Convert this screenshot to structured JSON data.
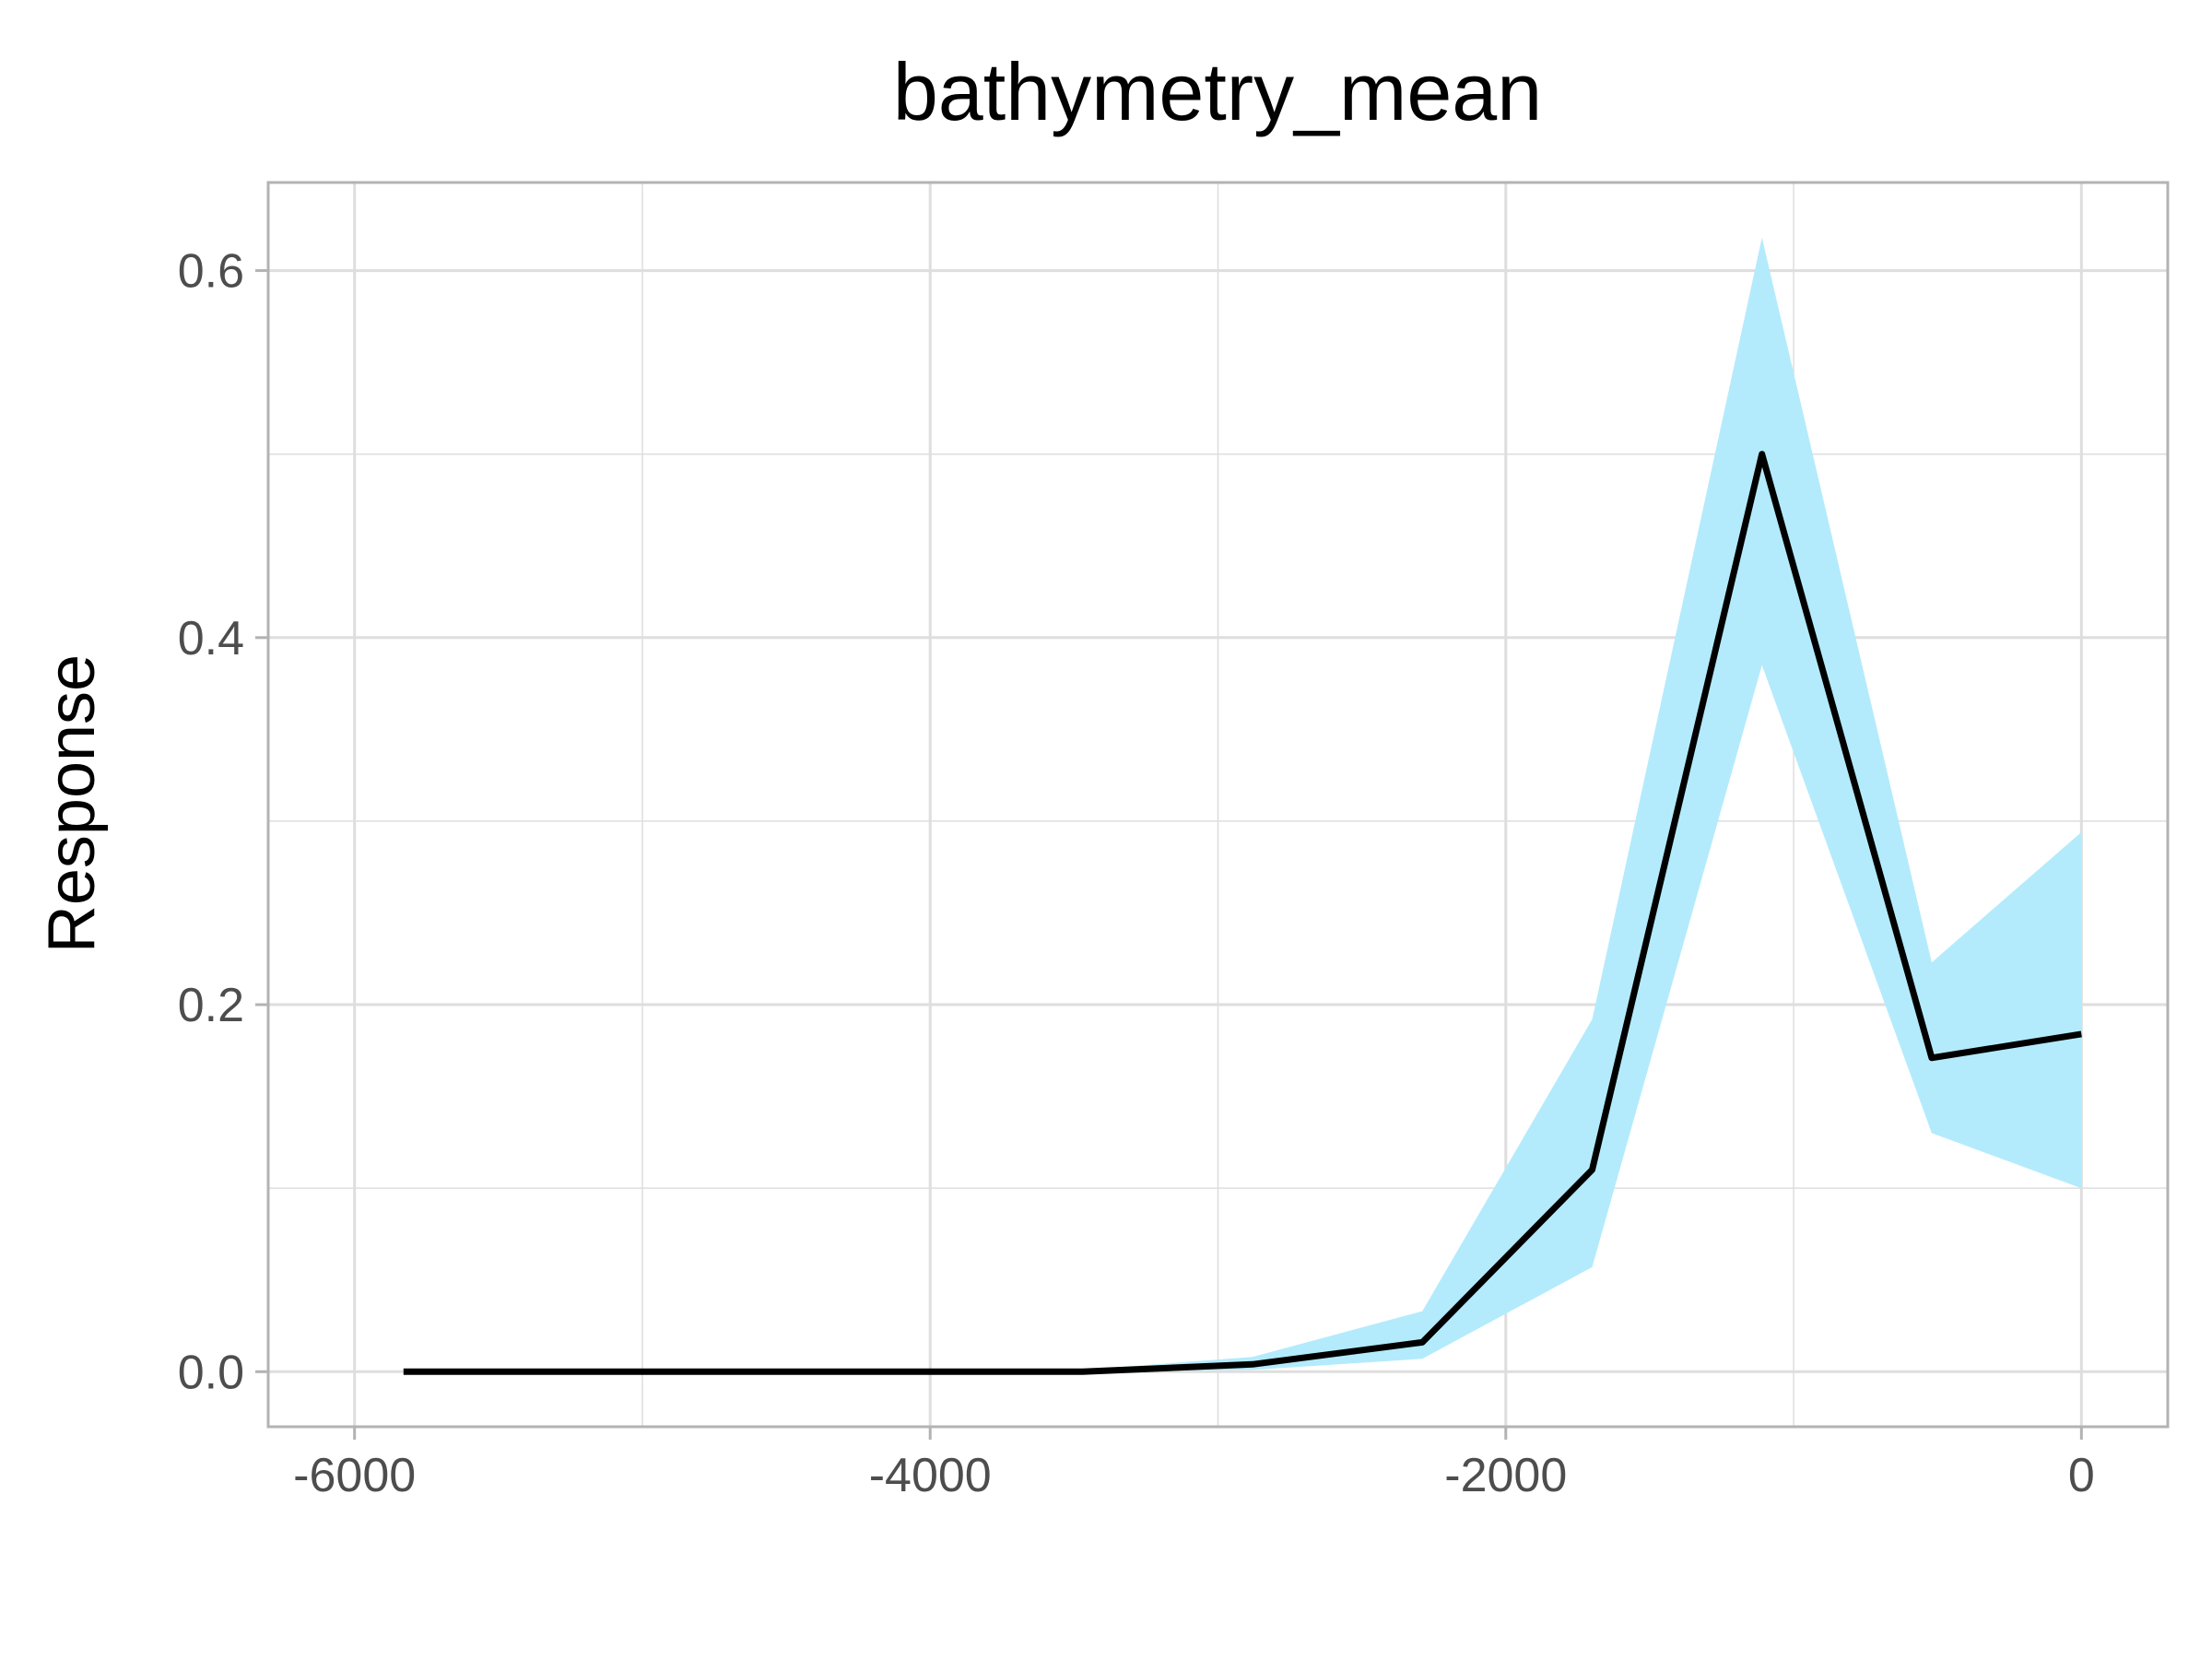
{
  "chart_data": {
    "type": "line",
    "title": "bathymetry_mean",
    "xlabel": "",
    "ylabel": "Response",
    "xlim": [
      -6300,
      300
    ],
    "ylim": [
      -0.03,
      0.648
    ],
    "x_ticks": [
      -6000,
      -4000,
      -2000,
      0
    ],
    "x_tick_labels": [
      "-6000",
      "-4000",
      "-2000",
      "0"
    ],
    "x_minor_ticks": [
      -5000,
      -3000,
      -1000
    ],
    "y_ticks": [
      0.0,
      0.2,
      0.4,
      0.6
    ],
    "y_tick_labels": [
      "0.0",
      "0.2",
      "0.4",
      "0.6"
    ],
    "y_minor_ticks": [
      0.1,
      0.3,
      0.5
    ],
    "grid": true,
    "series": [
      {
        "x": [
          -5830,
          -5240,
          -4650,
          -4060,
          -3470,
          -2880,
          -2290,
          -1700,
          -1110,
          -520,
          0
        ],
        "values": [
          0.0,
          0.0,
          0.0,
          0.0,
          0.0,
          0.004,
          0.016,
          0.11,
          0.5,
          0.171,
          0.184
        ],
        "lower": [
          0.0,
          0.0,
          0.0,
          0.0,
          0.0,
          0.001,
          0.007,
          0.057,
          0.385,
          0.13,
          0.1
        ],
        "upper": [
          0.0,
          0.0,
          0.0,
          0.0,
          0.001,
          0.008,
          0.033,
          0.192,
          0.618,
          0.223,
          0.294
        ],
        "line_color": "#000000",
        "band_color": "#b3ebfc"
      }
    ],
    "colors": {
      "grid": "#dedede",
      "panel_border": "#b3b3b3",
      "tick_mark": "#b3b3b3",
      "tick_label": "#4d4d4d"
    }
  }
}
